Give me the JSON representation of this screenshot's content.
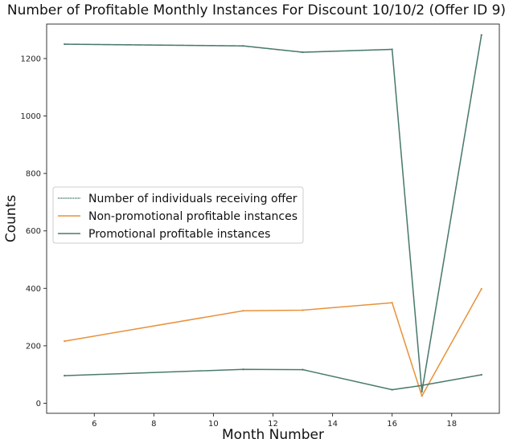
{
  "chart_data": {
    "type": "line",
    "title": "Number of Profitable Monthly Instances For Discount 10/10/2 (Offer ID 9)",
    "xlabel": "Month Number",
    "ylabel": "Counts",
    "xlim": [
      4.4,
      19.6
    ],
    "ylim": [
      -35,
      1320
    ],
    "x_ticks": [
      6,
      8,
      10,
      12,
      14,
      16,
      18
    ],
    "y_ticks": [
      0,
      200,
      400,
      600,
      800,
      1000,
      1200
    ],
    "grid": false,
    "legend_position": "center-left",
    "x": [
      5,
      11,
      13,
      16,
      17,
      19
    ],
    "series": [
      {
        "name": "Number of individuals receiving offer",
        "color": "#4a7a6e",
        "style": "dotted",
        "values": [
          1250,
          1244,
          1222,
          1232,
          40,
          1282
        ]
      },
      {
        "name": "Non-promotional profitable instances",
        "color": "#e8913a",
        "style": "solid",
        "values": [
          216,
          322,
          324,
          350,
          25,
          398
        ]
      },
      {
        "name": "Promotional profitable instances",
        "color": "#4a7a6e",
        "style": "solid",
        "values": [
          96,
          118,
          117,
          47,
          62,
          99
        ]
      }
    ]
  }
}
